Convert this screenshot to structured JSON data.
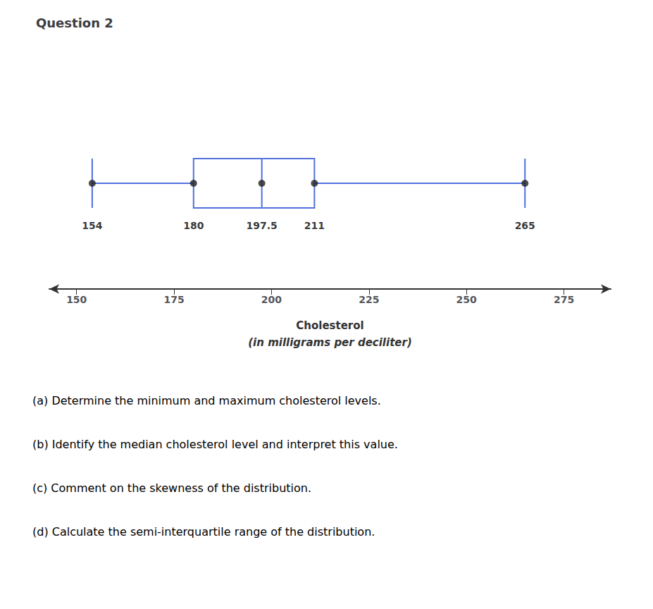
{
  "chart_data": {
    "type": "boxplot",
    "orientation": "horizontal",
    "title": "Question 2",
    "values": [
      154,
      180,
      197.5,
      211,
      265
    ],
    "data_labels": true,
    "xlabel": [
      "Cholesterol",
      "(in milligrams per deciliter)"
    ],
    "xlim": [
      143,
      287
    ],
    "xticks": [
      150,
      175,
      200,
      225,
      250,
      275
    ],
    "grid": false,
    "tick_labels": "x",
    "annotations": [
      "(a) Determine the minimum and maximum cholesterol levels.",
      "(b) Identify the median cholesterol level and interpret this value.",
      "(c) Comment on the skewness of the distribution.",
      "(d) Calculate the semi-interquartile range of the distribution."
    ]
  }
}
